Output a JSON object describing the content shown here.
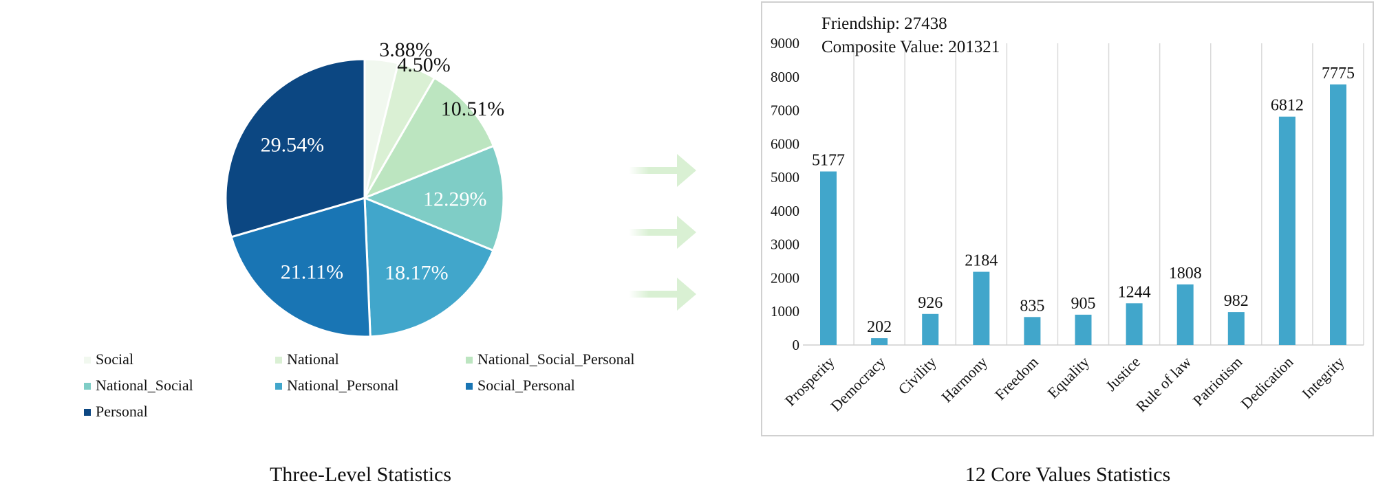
{
  "chart_data": [
    {
      "type": "pie",
      "title": "Three-Level Statistics",
      "legend_position": "bottom",
      "slices": [
        {
          "label": "Social",
          "value": 3.88,
          "display": "3.88%",
          "color": "#f1f8ef"
        },
        {
          "label": "National",
          "value": 4.5,
          "display": "4.50%",
          "color": "#daf0d4"
        },
        {
          "label": "National_Social_Personal",
          "value": 10.51,
          "display": "10.51%",
          "color": "#bce5c0"
        },
        {
          "label": "National_Social",
          "value": 12.29,
          "display": "12.29%",
          "color": "#7fcdc6"
        },
        {
          "label": "National_Personal",
          "value": 18.17,
          "display": "18.17%",
          "color": "#41a6cb"
        },
        {
          "label": "Social_Personal",
          "value": 21.11,
          "display": "21.11%",
          "color": "#1975b4"
        },
        {
          "label": "Personal",
          "value": 29.54,
          "display": "29.54%",
          "color": "#0c4782"
        }
      ]
    },
    {
      "type": "bar",
      "title": "12 Core Values Statistics",
      "annotations": [
        "Friendship: 27438",
        "Composite Value: 201321"
      ],
      "categories": [
        "Prosperity",
        "Democracy",
        "Civility",
        "Harmony",
        "Freedom",
        "Equality",
        "Justice",
        "Rule of law",
        "Patriotism",
        "Dedication",
        "Integrity"
      ],
      "values": [
        5177,
        202,
        926,
        2184,
        835,
        905,
        1244,
        1808,
        982,
        6812,
        7775
      ],
      "ylim": [
        0,
        9000
      ],
      "yticks": [
        0,
        1000,
        2000,
        3000,
        4000,
        5000,
        6000,
        7000,
        8000,
        9000
      ],
      "grid": "vertical",
      "bar_color": "#41a6cb"
    }
  ],
  "arrow_color": "#d9f0d3"
}
